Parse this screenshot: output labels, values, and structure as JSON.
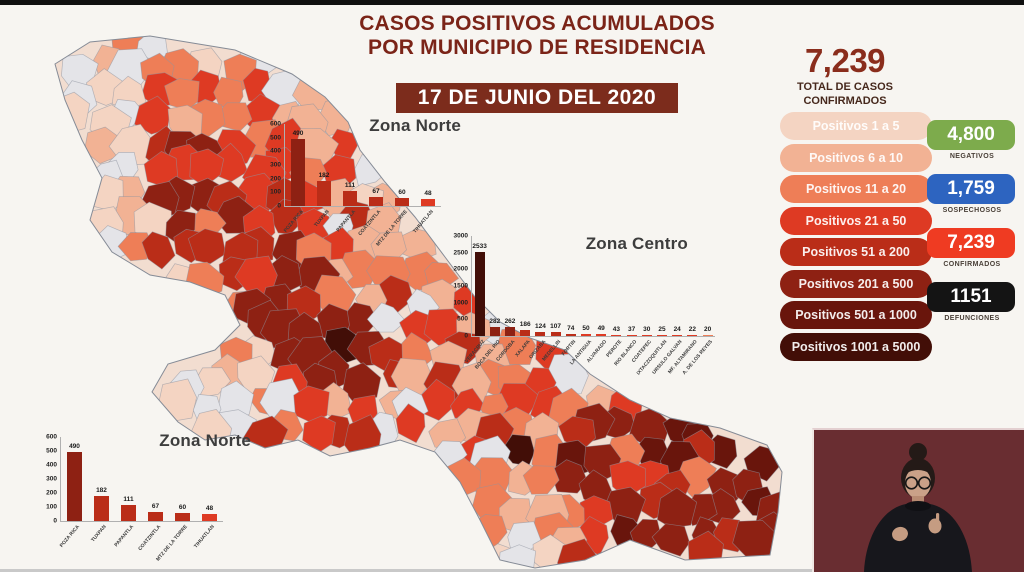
{
  "title": {
    "line1": "CASOS POSITIVOS ACUMULADOS",
    "line2": "POR MUNICIPIO DE RESIDENCIA",
    "date_banner": "17 DE JUNIO DEL 2020"
  },
  "totals": {
    "value": "7,239",
    "label1": "TOTAL DE CASOS",
    "label2": "CONFIRMADOS"
  },
  "legend": {
    "items": [
      {
        "label": "Positivos 1 a 5",
        "color": "#f4d4c2"
      },
      {
        "label": "Positivos 6 a 10",
        "color": "#f2b294"
      },
      {
        "label": "Positivos 11 a 20",
        "color": "#ee7e57"
      },
      {
        "label": "Positivos 21 a 50",
        "color": "#de3a23"
      },
      {
        "label": "Positivos 51 a 200",
        "color": "#ba2d18"
      },
      {
        "label": "Positivos 201 a 500",
        "color": "#8e2113"
      },
      {
        "label": "Positivos 501 a 1000",
        "color": "#69150c"
      },
      {
        "label": "Positivos 1001 a 5000",
        "color": "#420e07"
      }
    ]
  },
  "stats": [
    {
      "value": "4,800",
      "label": "NEGATIVOS",
      "color": "#7dab4c"
    },
    {
      "value": "1,759",
      "label": "SOSPECHOSOS",
      "color": "#2d64c0"
    },
    {
      "value": "7,239",
      "label": "CONFIRMADOS",
      "color": "#ef3b22"
    },
    {
      "value": "1151",
      "label": "DEFUNCIONES",
      "color": "#141414"
    }
  ],
  "map": {
    "no_data_color": "#e4e4e8",
    "border_color": "#8f95a0",
    "base_color": "#f2ddd0"
  },
  "chart_data": [
    {
      "type": "bar",
      "title": "Zona Norte",
      "categories": [
        "POZA RICA",
        "TUXPAN",
        "PAPANTLA",
        "COATZINTLA",
        "MTZ DE LA TORRE",
        "TIHUATLAN"
      ],
      "values": [
        490,
        182,
        111,
        67,
        60,
        48
      ],
      "ylim": [
        0,
        600
      ],
      "ytick_step": 100,
      "xlabel": "",
      "ylabel": "",
      "grid": false,
      "legend_position": "none"
    },
    {
      "type": "bar",
      "title": "Zona Centro",
      "categories": [
        "VERACRUZ",
        "BOCA DEL RIO",
        "CORDOBA",
        "XALAPA",
        "ORIZABA",
        "MEDELLIN",
        "FORTIN",
        "LA ANTIGUA",
        "ALVARADO",
        "PEROTE",
        "RIO BLANCO",
        "COATEPEC",
        "IXTACZOQUITLAN",
        "URSULO GALVAN",
        "MF. ALTAMIRANO",
        "A. DE LOS REYES"
      ],
      "values": [
        2533,
        282,
        262,
        186,
        124,
        107,
        74,
        50,
        49,
        43,
        37,
        30,
        25,
        24,
        22,
        20
      ],
      "ylim": [
        0,
        3000
      ],
      "ytick_step": 500,
      "xlabel": "",
      "ylabel": "",
      "grid": false,
      "legend_position": "none"
    },
    {
      "type": "bar",
      "title": "Zona Norte",
      "categories": [
        "POZA RICA",
        "TUXPAN",
        "PAPANTLA",
        "COATZINTLA",
        "MTZ DE LA TORRE",
        "TIHUATLAN"
      ],
      "values": [
        490,
        182,
        111,
        67,
        60,
        48
      ],
      "ylim": [
        0,
        600
      ],
      "ytick_step": 100,
      "xlabel": "",
      "ylabel": "",
      "grid": false,
      "legend_position": "none"
    }
  ]
}
